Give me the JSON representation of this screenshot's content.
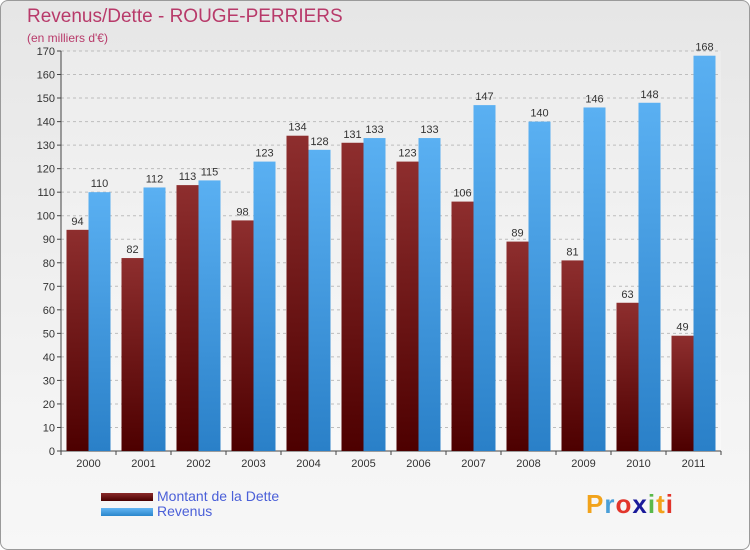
{
  "title": "Revenus/Dette - ROUGE-PERRIERS",
  "subtitle": "(en milliers d'€)",
  "logo": {
    "letters": [
      "P",
      "r",
      "o",
      "x",
      "i",
      "t",
      "i"
    ],
    "colors": [
      "#f2a31b",
      "#4a9fd8",
      "#e2352b",
      "#1a1a9a",
      "#5ab94a",
      "#f2a31b",
      "#e2352b"
    ]
  },
  "colors": {
    "debt": "#6e0d0d",
    "revenue": "#3d9be9",
    "title": "#b83a6a",
    "legend_text": "#4a5fd8"
  },
  "chart_data": {
    "type": "bar",
    "categories": [
      "2000",
      "2001",
      "2002",
      "2003",
      "2004",
      "2005",
      "2006",
      "2007",
      "2008",
      "2009",
      "2010",
      "2011"
    ],
    "series": [
      {
        "name": "Montant de la Dette",
        "values": [
          94,
          82,
          113,
          98,
          134,
          131,
          123,
          106,
          89,
          81,
          63,
          49
        ]
      },
      {
        "name": "Revenus",
        "values": [
          110,
          112,
          115,
          123,
          128,
          133,
          133,
          147,
          140,
          146,
          148,
          168
        ]
      }
    ],
    "ylim": [
      0,
      170
    ],
    "yticks": [
      0,
      10,
      20,
      30,
      40,
      50,
      60,
      70,
      80,
      90,
      100,
      110,
      120,
      130,
      140,
      150,
      160,
      170
    ],
    "grid": true,
    "legend": "bottom-left"
  }
}
